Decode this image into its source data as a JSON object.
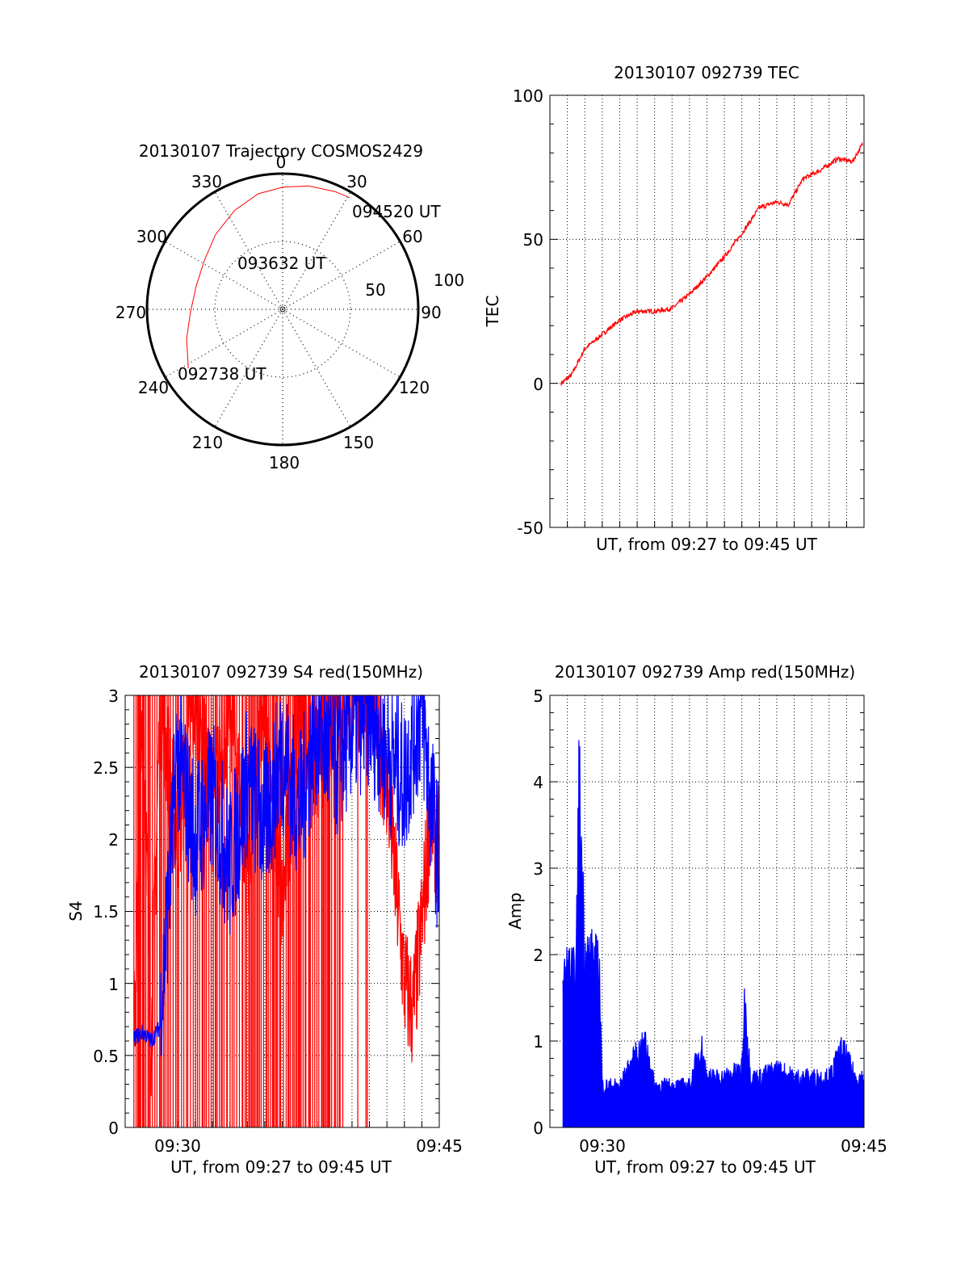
{
  "colors": {
    "primary": "#ff0000",
    "secondary": "#0000ff",
    "axis": "#000000",
    "grid": "#000000"
  },
  "chart_data": [
    {
      "id": "trajectory",
      "type": "polar",
      "title": "20130107 Trajectory COSMOS2429",
      "azimuth_labels": [
        "0",
        "30",
        "60",
        "90",
        "120",
        "150",
        "180",
        "210",
        "240",
        "270",
        "300",
        "330"
      ],
      "radial_labels": [
        "50",
        "100"
      ],
      "rlim": [
        0,
        100
      ],
      "grid": true,
      "track": {
        "color": "#ff0000",
        "points": [
          {
            "az": 238,
            "r": 82
          },
          {
            "az": 253,
            "r": 74
          },
          {
            "az": 268,
            "r": 68
          },
          {
            "az": 285,
            "r": 66
          },
          {
            "az": 302,
            "r": 68
          },
          {
            "az": 318,
            "r": 74
          },
          {
            "az": 334,
            "r": 81
          },
          {
            "az": 348,
            "r": 87
          },
          {
            "az": 0,
            "r": 90
          },
          {
            "az": 12,
            "r": 93
          },
          {
            "az": 24,
            "r": 95
          },
          {
            "az": 31,
            "r": 96
          }
        ]
      },
      "annotations": [
        {
          "text": "094520 UT",
          "az": 31,
          "r": 96
        },
        {
          "text": "093632 UT",
          "az": 355,
          "r": 34
        },
        {
          "text": "092738 UT",
          "az": 238,
          "r": 82
        }
      ]
    },
    {
      "id": "tec",
      "type": "line",
      "title": "20130107 092739 TEC",
      "xlabel": "UT, from 09:27 to 09:45 UT",
      "ylabel": "TEC",
      "xlim": [
        "09:27",
        "09:45"
      ],
      "ylim": [
        -50,
        100
      ],
      "yticks": [
        "-50",
        "0",
        "50",
        "100"
      ],
      "grid": true,
      "series": [
        {
          "color": "#ff0000",
          "x": [
            "09:27:39",
            "09:28:15",
            "09:29:00",
            "09:30:00",
            "09:31:00",
            "09:32:00",
            "09:33:00",
            "09:34:00",
            "09:35:00",
            "09:36:00",
            "09:37:00",
            "09:38:00",
            "09:39:00",
            "09:40:00",
            "09:40:40",
            "09:41:30",
            "09:42:30",
            "09:43:30",
            "09:44:20",
            "09:44:55"
          ],
          "values": [
            0,
            3,
            12,
            17,
            22,
            25,
            25,
            26,
            31,
            37,
            44,
            52,
            61,
            63,
            62,
            71,
            74,
            78,
            77,
            83
          ]
        }
      ]
    },
    {
      "id": "s4",
      "type": "line",
      "title": "20130107 092739 S4 red(150MHz)",
      "xlabel": "UT, from 09:27 to 09:45 UT",
      "ylabel": "S4",
      "xlim": [
        "09:27",
        "09:45"
      ],
      "ylim": [
        0,
        3
      ],
      "xticks": [
        "09:30",
        "09:45"
      ],
      "yticks": [
        "0",
        "0.5",
        "1",
        "1.5",
        "2",
        "2.5",
        "3"
      ],
      "grid": true,
      "series": [
        {
          "color": "#ff0000",
          "x": [
            "09:27:30",
            "09:28:00",
            "09:28:30",
            "09:29:00",
            "09:30:00",
            "09:31:00",
            "09:32:00",
            "09:33:00",
            "09:34:00",
            "09:35:00",
            "09:36:00",
            "09:37:00",
            "09:38:00",
            "09:39:00",
            "09:40:00",
            "09:41:00",
            "09:42:00",
            "09:43:00",
            "09:43:30",
            "09:44:00",
            "09:44:30",
            "09:45:00"
          ],
          "values": [
            0.6,
            3,
            0.6,
            3,
            2.0,
            3,
            2.2,
            3,
            1.8,
            3,
            1.5,
            3,
            2.5,
            3,
            3,
            3,
            2.4,
            1.0,
            0.8,
            1.4,
            2.2,
            1.9
          ]
        },
        {
          "color": "#0000ff",
          "x": [
            "09:27:30",
            "09:28:00",
            "09:28:30",
            "09:29:00",
            "09:30:00",
            "09:31:00",
            "09:32:00",
            "09:33:00",
            "09:34:00",
            "09:35:00",
            "09:36:00",
            "09:37:00",
            "09:38:00",
            "09:39:00",
            "09:40:00",
            "09:41:00",
            "09:42:00",
            "09:43:00",
            "09:43:30",
            "09:44:00",
            "09:44:30",
            "09:45:00"
          ],
          "values": [
            0.62,
            0.66,
            0.6,
            0.7,
            2.6,
            2.0,
            2.3,
            1.8,
            2.4,
            2.1,
            2.6,
            2.2,
            2.8,
            2.5,
            2.8,
            2.9,
            2.6,
            2.4,
            2.7,
            2.9,
            2.3,
            1.8
          ]
        }
      ]
    },
    {
      "id": "amp",
      "type": "line",
      "title": "20130107 092739 Amp red(150MHz)",
      "xlabel": "UT, from 09:27 to 09:45 UT",
      "ylabel": "Amp",
      "xlim": [
        "09:27",
        "09:45"
      ],
      "ylim": [
        0,
        5
      ],
      "xticks": [
        "09:30",
        "09:45"
      ],
      "yticks": [
        "0",
        "1",
        "2",
        "3",
        "4",
        "5"
      ],
      "grid": true,
      "series": [
        {
          "color": "#0000ff",
          "x": [
            "09:27:45",
            "09:28:00",
            "09:28:30",
            "09:28:40",
            "09:29:00",
            "09:29:30",
            "09:29:50",
            "09:30:00",
            "09:31:00",
            "09:32:00",
            "09:32:30",
            "09:33:00",
            "09:34:00",
            "09:35:00",
            "09:35:40",
            "09:36:00",
            "09:37:00",
            "09:38:00",
            "09:38:10",
            "09:38:30",
            "09:39:00",
            "09:40:00",
            "09:41:00",
            "09:42:00",
            "09:43:00",
            "09:43:45",
            "09:44:30",
            "09:45:00"
          ],
          "values": [
            1.7,
            1.9,
            1.8,
            4.2,
            2.1,
            2.0,
            1.9,
            0.5,
            0.5,
            0.9,
            1.0,
            0.5,
            0.5,
            0.5,
            1.0,
            0.6,
            0.6,
            0.7,
            1.55,
            0.6,
            0.6,
            0.7,
            0.6,
            0.6,
            0.6,
            0.95,
            0.6,
            0.6
          ]
        }
      ]
    }
  ]
}
